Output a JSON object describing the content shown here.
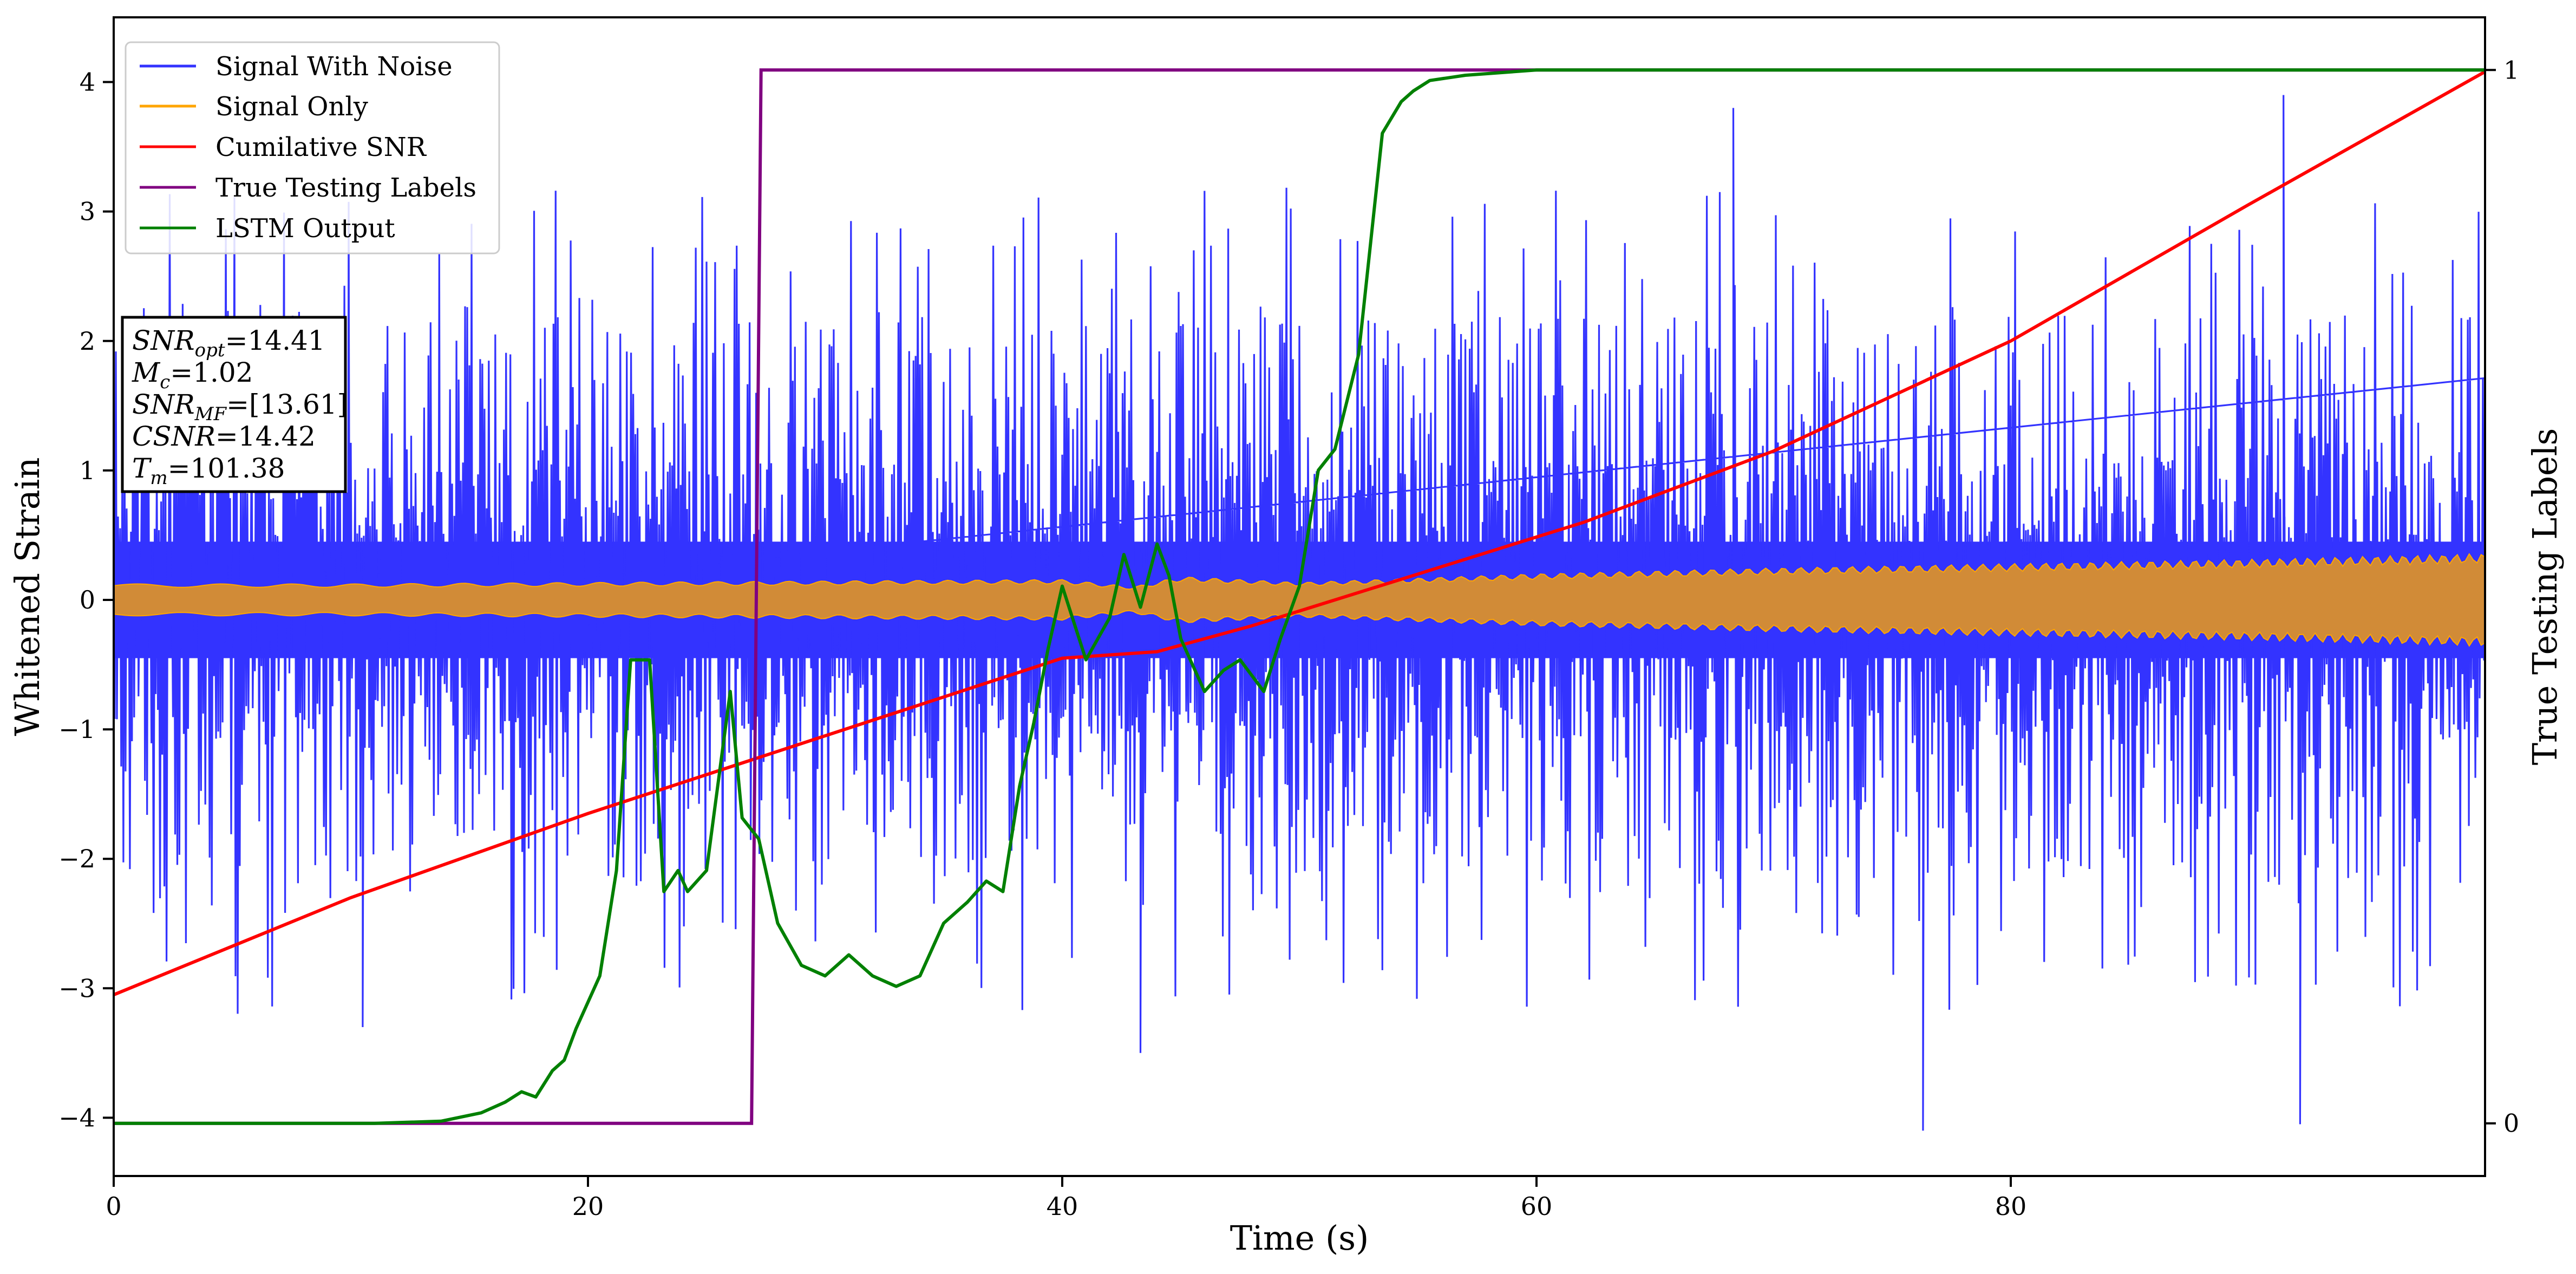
{
  "chart_data": {
    "type": "line",
    "xlabel": "Time (s)",
    "ylabel": "Whitened Strain",
    "y2label": "True Testing Labels",
    "xlim": [
      0,
      100
    ],
    "ylim": [
      -4.45,
      4.5
    ],
    "y2lim": [
      -0.05,
      1.05
    ],
    "x_ticks": [
      0,
      20,
      40,
      60,
      80
    ],
    "y_ticks": [
      -4,
      -3,
      -2,
      -1,
      0,
      1,
      2,
      3,
      4
    ],
    "y2_ticks": [
      0,
      1
    ],
    "legend_position": "top-left",
    "colors": {
      "signal_with_noise": "#3333ff",
      "signal_only": "#ffa500",
      "signal_only_fill": "#d18b37",
      "cumulative_snr": "#ff0000",
      "true_labels": "#800080",
      "lstm_output": "#008000"
    },
    "series": [
      {
        "name": "Signal With Noise",
        "kind": "noise-band",
        "note_values": "upper/lower envelope of whitened strain (data units)",
        "core_upper": 0.45,
        "core_lower": -0.45,
        "peak_upper_typical": [
          1.0,
          3.0
        ],
        "peak_lower_typical": [
          -1.0,
          -3.3
        ],
        "extreme_points": [
          {
            "x": 10.5,
            "y": -3.3
          },
          {
            "x": 43.3,
            "y": -3.5
          },
          {
            "x": 68.3,
            "y": 3.8
          },
          {
            "x": 76.3,
            "y": -4.1
          },
          {
            "x": 91.5,
            "y": 3.9
          },
          {
            "x": 92.2,
            "y": -4.05
          }
        ]
      },
      {
        "name": "Signal Only",
        "kind": "chirp-envelope",
        "x": [
          0,
          10,
          20,
          30,
          40,
          43,
          45,
          50,
          60,
          70,
          80,
          90,
          100
        ],
        "amplitude": [
          0.11,
          0.11,
          0.12,
          0.13,
          0.14,
          0.09,
          0.16,
          0.12,
          0.18,
          0.22,
          0.25,
          0.28,
          0.32
        ]
      },
      {
        "name": "Cumilative SNR",
        "x": [
          0,
          10,
          20,
          30,
          40,
          44,
          48,
          55,
          62,
          70,
          80,
          90,
          100
        ],
        "y": [
          -3.05,
          -2.3,
          -1.65,
          -1.05,
          -0.45,
          -0.4,
          -0.2,
          0.2,
          0.6,
          1.15,
          2.0,
          3.05,
          4.08
        ]
      },
      {
        "name": "True Testing Labels",
        "axis": "y2",
        "x": [
          0,
          26.9,
          27.3,
          100
        ],
        "y": [
          0,
          0,
          1,
          1
        ]
      },
      {
        "name": "LSTM Output",
        "axis": "y2",
        "x": [
          0,
          11,
          13.8,
          15.5,
          16.5,
          17.2,
          17.8,
          18.5,
          19,
          19.5,
          20.5,
          21.2,
          21.8,
          22.6,
          23.2,
          23.8,
          24.2,
          25,
          26,
          26.5,
          27.2,
          28,
          29,
          30,
          31,
          32,
          33,
          34,
          35,
          36,
          36.8,
          37.5,
          38.2,
          38.8,
          39.4,
          40,
          41,
          42,
          42.6,
          43.3,
          44,
          44.5,
          45,
          46,
          46.8,
          47.5,
          48.5,
          49.2,
          50,
          50.8,
          51.5,
          52.5,
          53.5,
          54.3,
          54.8,
          55.5,
          57,
          60,
          65,
          70,
          100
        ],
        "y": [
          0,
          0,
          0.002,
          0.01,
          0.02,
          0.03,
          0.025,
          0.05,
          0.06,
          0.09,
          0.14,
          0.24,
          0.44,
          0.44,
          0.22,
          0.24,
          0.22,
          0.24,
          0.41,
          0.29,
          0.27,
          0.19,
          0.15,
          0.14,
          0.16,
          0.14,
          0.13,
          0.14,
          0.19,
          0.21,
          0.23,
          0.22,
          0.32,
          0.38,
          0.45,
          0.51,
          0.44,
          0.48,
          0.54,
          0.49,
          0.55,
          0.52,
          0.46,
          0.41,
          0.43,
          0.44,
          0.41,
          0.46,
          0.51,
          0.62,
          0.64,
          0.73,
          0.94,
          0.97,
          0.98,
          0.99,
          0.995,
          1,
          1,
          1,
          1
        ]
      }
    ],
    "legend": [
      "Signal With Noise",
      "Signal Only",
      "Cumilative SNR",
      "True Testing Labels",
      "LSTM Output"
    ],
    "annotation": {
      "snr_opt": {
        "base": "SNR",
        "sub": "opt",
        "value": "=14.41"
      },
      "mc": {
        "base": "M",
        "sub": "c",
        "value": "=1.02"
      },
      "snr_mf": {
        "base": "SNR",
        "sub": "MF",
        "value": "=[13.61]"
      },
      "csnr": {
        "base": "CSNR",
        "value": "=14.42"
      },
      "tm": {
        "base": "T",
        "sub": "m",
        "value": "=101.38"
      }
    }
  }
}
